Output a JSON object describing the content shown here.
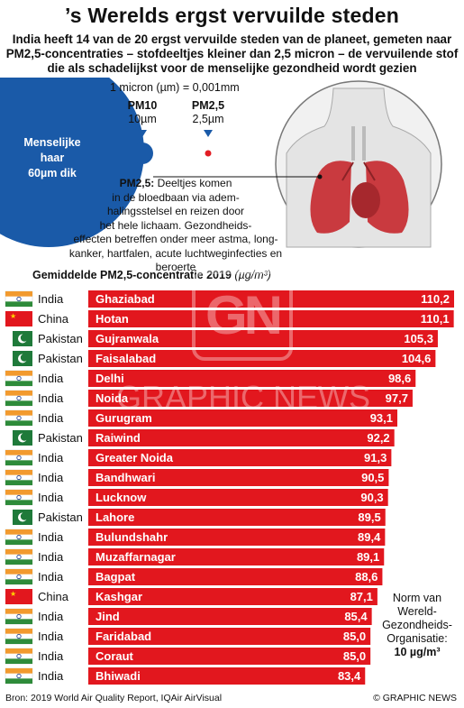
{
  "header": {
    "title": "’s Werelds ergst vervuilde steden",
    "subtitle": "India heeft 14 van de 20 ergst vervuilde steden van de planeet, gemeten naar PM2,5-concentraties – stofdeeltjes kleiner dan 2,5 micron – de vervuilende stof die als schadelijkst voor de menselijke gezondheid wordt gezien"
  },
  "illustration": {
    "micron": "1 micron (µm) = 0,001mm",
    "human_hair": [
      "Menselijke",
      "haar",
      "60µm dik"
    ],
    "pm10_label": "PM10",
    "pm10_size": "10µm",
    "pm25_label": "PM2,5",
    "pm25_size": "2,5µm",
    "pm25_heading": "PM2,5:",
    "pm25_lines": [
      "Deeltjes komen",
      "in de bloedbaan via adem-",
      "halingsstelsel en reizen door",
      "het hele lichaam. Gezondheids-",
      "effecten betreffen onder meer astma, long-",
      "kanker, hartfalen, acute luchtweginfecties en beroerte"
    ],
    "colors": {
      "hair": "#1a5aa8",
      "pm10": "#1a5aa8",
      "pm25": "#e21d24",
      "lungs": "#c93a3f"
    }
  },
  "chart_data": {
    "type": "bar",
    "title": "Gemiddelde PM2,5-concentratie 2019",
    "unit": "(µg/m³)",
    "bar_color": "#e2171e",
    "max_value": 110.2,
    "rows": [
      {
        "country": "India",
        "flag": "india-flag-icon",
        "city": "Ghaziabad",
        "value": 110.2,
        "label": "110,2"
      },
      {
        "country": "China",
        "flag": "china-flag-icon",
        "city": "Hotan",
        "value": 110.1,
        "label": "110,1"
      },
      {
        "country": "Pakistan",
        "flag": "pakistan-flag-icon",
        "city": "Gujranwala",
        "value": 105.3,
        "label": "105,3"
      },
      {
        "country": "Pakistan",
        "flag": "pakistan-flag-icon",
        "city": "Faisalabad",
        "value": 104.6,
        "label": "104,6"
      },
      {
        "country": "India",
        "flag": "india-flag-icon",
        "city": "Delhi",
        "value": 98.6,
        "label": "98,6"
      },
      {
        "country": "India",
        "flag": "india-flag-icon",
        "city": "Noida",
        "value": 97.7,
        "label": "97,7"
      },
      {
        "country": "India",
        "flag": "india-flag-icon",
        "city": "Gurugram",
        "value": 93.1,
        "label": "93,1"
      },
      {
        "country": "Pakistan",
        "flag": "pakistan-flag-icon",
        "city": "Raiwind",
        "value": 92.2,
        "label": "92,2"
      },
      {
        "country": "India",
        "flag": "india-flag-icon",
        "city": "Greater Noida",
        "value": 91.3,
        "label": "91,3"
      },
      {
        "country": "India",
        "flag": "india-flag-icon",
        "city": "Bandhwari",
        "value": 90.5,
        "label": "90,5"
      },
      {
        "country": "India",
        "flag": "india-flag-icon",
        "city": "Lucknow",
        "value": 90.3,
        "label": "90,3"
      },
      {
        "country": "Pakistan",
        "flag": "pakistan-flag-icon",
        "city": "Lahore",
        "value": 89.5,
        "label": "89,5"
      },
      {
        "country": "India",
        "flag": "india-flag-icon",
        "city": "Bulundshahr",
        "value": 89.4,
        "label": "89,4"
      },
      {
        "country": "India",
        "flag": "india-flag-icon",
        "city": "Muzaffarnagar",
        "value": 89.1,
        "label": "89,1"
      },
      {
        "country": "India",
        "flag": "india-flag-icon",
        "city": "Bagpat",
        "value": 88.6,
        "label": "88,6"
      },
      {
        "country": "China",
        "flag": "china-flag-icon",
        "city": "Kashgar",
        "value": 87.1,
        "label": "87,1"
      },
      {
        "country": "India",
        "flag": "india-flag-icon",
        "city": "Jind",
        "value": 85.4,
        "label": "85,4"
      },
      {
        "country": "India",
        "flag": "india-flag-icon",
        "city": "Faridabad",
        "value": 85.0,
        "label": "85,0"
      },
      {
        "country": "India",
        "flag": "india-flag-icon",
        "city": "Coraut",
        "value": 85.0,
        "label": "85,0"
      },
      {
        "country": "India",
        "flag": "india-flag-icon",
        "city": "Bhiwadi",
        "value": 83.4,
        "label": "83,4"
      }
    ]
  },
  "note": {
    "lines": [
      "Norm van",
      "Wereld-",
      "Gezondheids-",
      "Organisatie:"
    ],
    "value": "10 µg/m³"
  },
  "watermark": {
    "logo": "GN",
    "text": "GRAPHIC NEWS"
  },
  "footer": {
    "source": "Bron: 2019 World Air Quality Report, IQAir AirVisual",
    "credit": "© GRAPHIC NEWS"
  }
}
